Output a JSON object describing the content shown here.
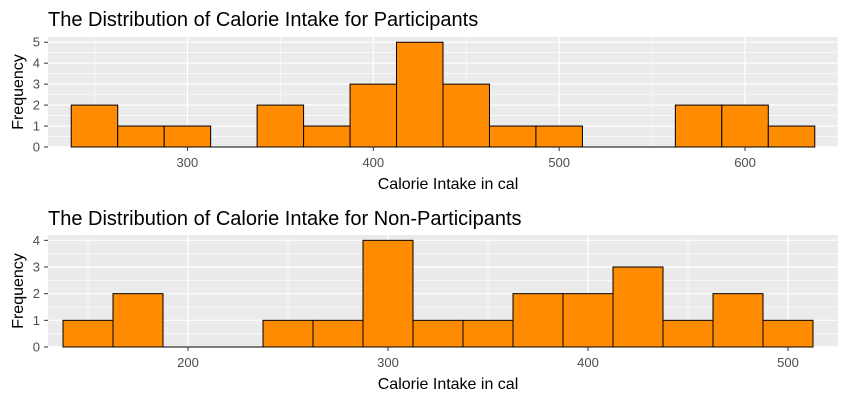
{
  "chart_data": [
    {
      "type": "bar",
      "title": "The Distribution of Calorie Intake for Participants",
      "xlabel": "Calorie Intake in cal",
      "ylabel": "Frequency",
      "bin_width": 25,
      "xlim": [
        225,
        650
      ],
      "ylim": [
        0,
        5.25
      ],
      "x_ticks": [
        300,
        400,
        500,
        600
      ],
      "x_tick_labels": [
        "300",
        "400",
        "500",
        "600"
      ],
      "y_ticks": [
        0,
        1,
        2,
        3,
        4,
        5
      ],
      "y_tick_labels": [
        "0",
        "1",
        "2",
        "3",
        "4",
        "5"
      ],
      "bins": [
        {
          "x": 250,
          "count": 2
        },
        {
          "x": 275,
          "count": 1
        },
        {
          "x": 300,
          "count": 1
        },
        {
          "x": 325,
          "count": 0
        },
        {
          "x": 350,
          "count": 2
        },
        {
          "x": 375,
          "count": 1
        },
        {
          "x": 400,
          "count": 3
        },
        {
          "x": 425,
          "count": 5
        },
        {
          "x": 450,
          "count": 3
        },
        {
          "x": 475,
          "count": 1
        },
        {
          "x": 500,
          "count": 1
        },
        {
          "x": 525,
          "count": 0
        },
        {
          "x": 550,
          "count": 0
        },
        {
          "x": 575,
          "count": 2
        },
        {
          "x": 600,
          "count": 2
        },
        {
          "x": 625,
          "count": 1
        }
      ],
      "fill": "#FF8C00",
      "outline": "#000000",
      "grid": true,
      "panel_bg": "#EBEBEB"
    },
    {
      "type": "bar",
      "title": "The Distribution of Calorie Intake for Non-Participants",
      "xlabel": "Calorie Intake in cal",
      "ylabel": "Frequency",
      "bin_width": 25,
      "xlim": [
        130,
        525
      ],
      "ylim": [
        0,
        4.2
      ],
      "x_ticks": [
        200,
        300,
        400,
        500
      ],
      "x_tick_labels": [
        "200",
        "300",
        "400",
        "500"
      ],
      "y_ticks": [
        0,
        1,
        2,
        3,
        4
      ],
      "y_tick_labels": [
        "0",
        "1",
        "2",
        "3",
        "4"
      ],
      "bins": [
        {
          "x": 150,
          "count": 1
        },
        {
          "x": 175,
          "count": 2
        },
        {
          "x": 200,
          "count": 0
        },
        {
          "x": 225,
          "count": 0
        },
        {
          "x": 250,
          "count": 1
        },
        {
          "x": 275,
          "count": 1
        },
        {
          "x": 300,
          "count": 4
        },
        {
          "x": 325,
          "count": 1
        },
        {
          "x": 350,
          "count": 1
        },
        {
          "x": 375,
          "count": 2
        },
        {
          "x": 400,
          "count": 2
        },
        {
          "x": 425,
          "count": 3
        },
        {
          "x": 450,
          "count": 1
        },
        {
          "x": 475,
          "count": 2
        },
        {
          "x": 500,
          "count": 1
        }
      ],
      "fill": "#FF8C00",
      "outline": "#000000",
      "grid": true,
      "panel_bg": "#EBEBEB"
    }
  ]
}
